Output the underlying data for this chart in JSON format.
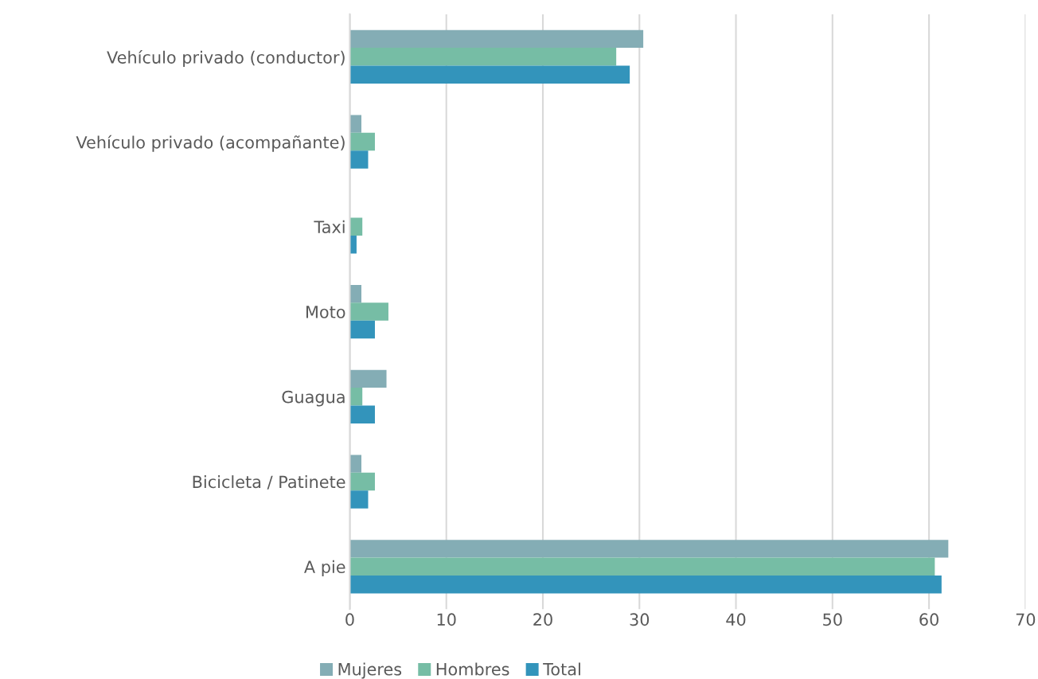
{
  "chart_data": {
    "type": "bar",
    "orientation": "horizontal",
    "categories": [
      "Vehículo privado (conductor)",
      "Vehículo privado (acompañante)",
      "Taxi",
      "Moto",
      "Guagua",
      "Bicicleta / Patinete",
      "A pie"
    ],
    "series": [
      {
        "name": "Mujeres",
        "color": "#84adb5",
        "values": [
          30.4,
          1.2,
          null,
          1.2,
          3.8,
          1.2,
          62.0
        ]
      },
      {
        "name": "Hombres",
        "color": "#76bda5",
        "values": [
          27.6,
          2.6,
          1.3,
          4.0,
          1.3,
          2.6,
          60.6
        ]
      },
      {
        "name": "Total",
        "color": "#3394bb",
        "values": [
          29.0,
          1.9,
          0.7,
          2.6,
          2.6,
          1.9,
          61.3
        ]
      }
    ],
    "xlim": [
      0,
      70
    ],
    "xticks": [
      0,
      10,
      20,
      30,
      40,
      50,
      60,
      70
    ],
    "grid": "x",
    "legend": "bottom"
  }
}
